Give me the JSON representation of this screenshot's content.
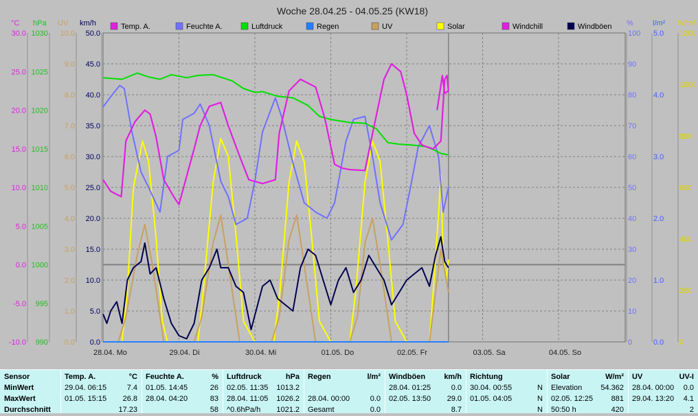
{
  "chart_data": {
    "type": "line",
    "title": "Woche 28.04.25 - 04.05.25 (KW18)",
    "x_ticks": [
      "28.04. Mo",
      "29.04. Di",
      "30.04. Mi",
      "01.05. Do",
      "02.05. Fr",
      "03.05. Sa",
      "04.05. So"
    ],
    "x_range_days": [
      0,
      7
    ],
    "data_end_day": 4.55,
    "grid": true,
    "axes": {
      "temp": {
        "unit": "°C",
        "range": [
          -10,
          30
        ],
        "ticks": [
          "30.0",
          "25.0",
          "20.0",
          "15.0",
          "10.0",
          "5.0",
          "0.0",
          "-5.0",
          "-10.0"
        ],
        "color": "#e020e0"
      },
      "hpa": {
        "unit": "hPa",
        "range": [
          990,
          1030
        ],
        "ticks": [
          "1030",
          "1025",
          "1020",
          "1015",
          "1010",
          "1005",
          "1000",
          "995",
          "990"
        ],
        "color": "#20c020"
      },
      "uv": {
        "unit": "UV",
        "range": [
          0,
          10
        ],
        "ticks": [
          "10.0",
          "9.0",
          "8.0",
          "7.0",
          "6.0",
          "5.0",
          "4.0",
          "3.0",
          "2.0",
          "1.0",
          "0.0"
        ],
        "color": "#c8a060"
      },
      "kmh": {
        "unit": "km/h",
        "range": [
          0,
          50
        ],
        "ticks": [
          "50.0",
          "45.0",
          "40.0",
          "35.0",
          "30.0",
          "25.0",
          "20.0",
          "15.0",
          "10.0",
          "5.0",
          "0.0"
        ],
        "color": "#000060"
      },
      "pct": {
        "unit": "%",
        "range": [
          0,
          100
        ],
        "ticks": [
          "100",
          "90",
          "80",
          "70",
          "60",
          "50",
          "40",
          "30",
          "20",
          "10",
          "0"
        ],
        "color": "#7070ff"
      },
      "rain": {
        "unit": "l/m²",
        "range": [
          0,
          5
        ],
        "ticks": [
          "5.0",
          "4.0",
          "3.0",
          "2.0",
          "1.0",
          "0.0"
        ],
        "color": "#4060ff"
      },
      "solar": {
        "unit": "W/m²",
        "range": [
          0,
          1200
        ],
        "ticks": [
          "1200",
          "1000",
          "800",
          "600",
          "400",
          "200",
          "0"
        ],
        "color": "#e0d000"
      }
    },
    "legend": [
      "Temp. A.",
      "Feuchte A.",
      "Luftdruck",
      "Regen",
      "UV",
      "Solar",
      "Windchill",
      "Windböen"
    ],
    "series": [
      {
        "name": "Temp. A.",
        "color": "#e020e0",
        "axis": "temp",
        "x": [
          0,
          0.1,
          0.24,
          0.3,
          0.42,
          0.55,
          0.62,
          0.7,
          0.8,
          0.95,
          1.0,
          1.2,
          1.28,
          1.4,
          1.55,
          1.65,
          1.8,
          1.92,
          2.1,
          2.27,
          2.32,
          2.45,
          2.6,
          2.8,
          2.92,
          3.05,
          3.15,
          3.25,
          3.45,
          3.55,
          3.7,
          3.8,
          3.92,
          4.0,
          4.1,
          4.2,
          4.25,
          4.35,
          4.45,
          4.5,
          4.53,
          4.55
        ],
        "y": [
          11,
          9.5,
          8.8,
          16,
          18.5,
          20,
          19.5,
          16.5,
          11,
          8.5,
          7.8,
          15,
          18,
          20.5,
          21,
          18,
          14,
          11,
          10.5,
          11,
          17,
          22.5,
          24,
          23,
          19,
          13,
          12.5,
          12.3,
          12.2,
          17,
          24,
          26,
          25,
          22,
          17,
          15.5,
          15.3,
          15,
          16,
          24,
          24.5,
          22.5
        ]
      },
      {
        "name": "Feuchte A.",
        "color": "#7070ff",
        "axis": "pct",
        "x": [
          0,
          0.12,
          0.22,
          0.28,
          0.38,
          0.5,
          0.6,
          0.75,
          0.85,
          1.0,
          1.05,
          1.2,
          1.28,
          1.4,
          1.55,
          1.65,
          1.75,
          1.9,
          2.0,
          2.1,
          2.27,
          2.35,
          2.5,
          2.65,
          2.8,
          2.95,
          3.05,
          3.2,
          3.3,
          3.45,
          3.55,
          3.65,
          3.8,
          3.95,
          4.05,
          4.15,
          4.3,
          4.42,
          4.48,
          4.55
        ],
        "y": [
          76,
          80,
          83,
          82,
          68,
          55,
          50,
          42,
          60,
          62,
          72,
          74,
          77,
          70,
          52,
          47,
          38,
          40,
          52,
          68,
          79,
          73,
          58,
          45,
          42,
          40,
          45,
          65,
          72,
          73,
          60,
          45,
          33,
          38,
          50,
          63,
          70,
          60,
          42,
          50
        ]
      },
      {
        "name": "Luftdruck",
        "color": "#00e000",
        "axis": "hpa",
        "x": [
          0,
          0.25,
          0.45,
          0.6,
          0.75,
          0.9,
          1.1,
          1.25,
          1.45,
          1.7,
          1.85,
          2.0,
          2.1,
          2.3,
          2.5,
          2.7,
          2.85,
          3.0,
          3.25,
          3.45,
          3.6,
          3.75,
          3.9,
          4.05,
          4.25,
          4.35,
          4.45,
          4.55
        ],
        "y": [
          1024.2,
          1024,
          1024.8,
          1024.3,
          1024,
          1024.6,
          1024.2,
          1024.5,
          1024.6,
          1023.8,
          1022.8,
          1022.3,
          1022.4,
          1021.8,
          1021.6,
          1020.6,
          1019.2,
          1018.8,
          1018.4,
          1018.3,
          1017.6,
          1015.8,
          1015.6,
          1015.5,
          1015.3,
          1014.9,
          1014.4,
          1014.2
        ]
      },
      {
        "name": "Regen",
        "color": "#2080ff",
        "axis": "rain",
        "x": [
          0,
          4.55
        ],
        "y": [
          0,
          0
        ]
      },
      {
        "name": "UV",
        "color": "#c8a060",
        "axis": "uv",
        "x": [
          0,
          0.2,
          0.3,
          0.45,
          0.55,
          0.65,
          0.8,
          1.0,
          1.2,
          1.3,
          1.45,
          1.55,
          1.65,
          1.8,
          2.0,
          2.22,
          2.32,
          2.45,
          2.55,
          2.65,
          2.8,
          3.0,
          3.25,
          3.35,
          3.45,
          3.55,
          3.65,
          3.8,
          4.0,
          4.3,
          4.4,
          4.45,
          4.55
        ],
        "y": [
          0,
          0,
          0.8,
          2.8,
          3.8,
          2.5,
          0,
          0,
          0,
          0.8,
          3.2,
          4.1,
          2.5,
          0,
          0,
          0,
          0.8,
          3.3,
          4.1,
          2.5,
          0,
          0,
          0,
          0.8,
          3.2,
          4,
          2.5,
          0,
          0,
          0,
          2,
          3,
          1.6
        ]
      },
      {
        "name": "Solar",
        "color": "#ffff00",
        "axis": "solar",
        "x": [
          0,
          0.25,
          0.32,
          0.4,
          0.52,
          0.6,
          0.7,
          0.78,
          0.85,
          1.0,
          1.25,
          1.32,
          1.45,
          1.55,
          1.65,
          1.75,
          1.85,
          2.0,
          2.25,
          2.33,
          2.45,
          2.55,
          2.65,
          2.75,
          2.85,
          3.0,
          3.25,
          3.33,
          3.45,
          3.55,
          3.65,
          3.75,
          3.85,
          4.0,
          4.3,
          4.35,
          4.42,
          4.45,
          4.48,
          4.52,
          4.55
        ],
        "y": [
          0,
          0,
          200,
          600,
          780,
          700,
          400,
          80,
          0,
          0,
          0,
          200,
          620,
          790,
          720,
          420,
          80,
          0,
          0,
          200,
          620,
          780,
          700,
          400,
          80,
          0,
          0,
          200,
          620,
          780,
          700,
          400,
          80,
          0,
          0,
          200,
          500,
          650,
          350,
          240,
          320
        ]
      },
      {
        "name": "Windchill",
        "color": "#e020e0",
        "axis": "temp",
        "x": [
          4.4,
          4.47,
          4.5,
          4.55
        ],
        "y": [
          20,
          24.5,
          22.2,
          22.5
        ]
      },
      {
        "name": "Windböen",
        "color": "#000050",
        "axis": "kmh",
        "x": [
          0,
          0.05,
          0.1,
          0.18,
          0.25,
          0.32,
          0.4,
          0.5,
          0.55,
          0.62,
          0.7,
          0.8,
          0.9,
          1.0,
          1.1,
          1.2,
          1.3,
          1.4,
          1.5,
          1.55,
          1.65,
          1.75,
          1.85,
          1.95,
          2.1,
          2.2,
          2.3,
          2.4,
          2.5,
          2.6,
          2.7,
          2.8,
          2.9,
          3.0,
          3.05,
          3.1,
          3.2,
          3.3,
          3.4,
          3.5,
          3.55,
          3.65,
          3.7,
          3.8,
          3.9,
          4.0,
          4.1,
          4.2,
          4.3,
          4.38,
          4.45,
          4.5,
          4.55
        ],
        "y": [
          4.5,
          3,
          5,
          6.5,
          3,
          10,
          12,
          13,
          16,
          11,
          12,
          7,
          3,
          1,
          0.5,
          3,
          10,
          12,
          15,
          12,
          12,
          9,
          8,
          2,
          9,
          10,
          7,
          6,
          5,
          12,
          15,
          14,
          10,
          6,
          8,
          10,
          12,
          8,
          10,
          14,
          13,
          11,
          10,
          6,
          8,
          10,
          11,
          12,
          9,
          14,
          17,
          13,
          12
        ]
      }
    ]
  },
  "stats": {
    "columns": [
      {
        "title": "Sensor",
        "unit": "",
        "rows": [
          [
            "MinWert",
            ""
          ],
          [
            "MaxWert",
            ""
          ],
          [
            "Durchschnitt",
            ""
          ]
        ]
      },
      {
        "title": "Temp. A.",
        "unit": "°C",
        "rows": [
          [
            "29.04.  06:15",
            "7.4"
          ],
          [
            "01.05.  15:15",
            "26.8"
          ],
          [
            "",
            "17.23"
          ]
        ]
      },
      {
        "title": "Feuchte A.",
        "unit": "%",
        "rows": [
          [
            "01.05.  14:45",
            "26"
          ],
          [
            "28.04.  04:20",
            "83"
          ],
          [
            "",
            "58"
          ]
        ]
      },
      {
        "title": "Luftdruck",
        "unit": "hPa",
        "rows": [
          [
            "02.05.  11:35",
            "1013.2"
          ],
          [
            "28.04.  11:05",
            "1026.2"
          ],
          [
            "^0.6hPa/h",
            "1021.2"
          ]
        ]
      },
      {
        "title": "Regen",
        "unit": "l/m²",
        "rows": [
          [
            "",
            ""
          ],
          [
            "28.04.  00:00",
            "0.0"
          ],
          [
            "Gesamt",
            "0.0"
          ]
        ]
      },
      {
        "title": "Windböen",
        "unit": "km/h",
        "rows": [
          [
            "28.04.  01:25",
            "0.0"
          ],
          [
            "02.05.  13:50",
            "29.0"
          ],
          [
            "",
            "8.7"
          ]
        ]
      },
      {
        "title": "Richtung",
        "unit": "",
        "rows": [
          [
            "30.04.  00:55",
            "N"
          ],
          [
            "01.05.  04:05",
            "N"
          ],
          [
            "",
            "N"
          ]
        ]
      },
      {
        "title": "Solar",
        "unit": "W/m²",
        "rows": [
          [
            "Elevation",
            "54.362"
          ],
          [
            "02.05.  12:25",
            "881"
          ],
          [
            "50:50 h",
            "420"
          ]
        ]
      },
      {
        "title": "UV",
        "unit": "UV-I",
        "rows": [
          [
            "28.04.  00:00",
            "0.0"
          ],
          [
            "29.04.  13:20",
            "4.1"
          ],
          [
            "",
            "2"
          ]
        ]
      }
    ]
  }
}
